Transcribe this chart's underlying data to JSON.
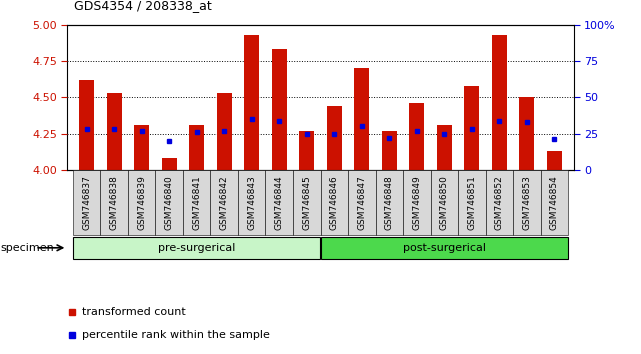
{
  "title": "GDS4354 / 208338_at",
  "samples": [
    "GSM746837",
    "GSM746838",
    "GSM746839",
    "GSM746840",
    "GSM746841",
    "GSM746842",
    "GSM746843",
    "GSM746844",
    "GSM746845",
    "GSM746846",
    "GSM746847",
    "GSM746848",
    "GSM746849",
    "GSM746850",
    "GSM746851",
    "GSM746852",
    "GSM746853",
    "GSM746854"
  ],
  "bar_heights": [
    4.62,
    4.53,
    4.31,
    4.08,
    4.31,
    4.53,
    4.93,
    4.83,
    4.27,
    4.44,
    4.7,
    4.27,
    4.46,
    4.31,
    4.58,
    4.93,
    4.5,
    4.13
  ],
  "blue_dot_y": [
    4.28,
    4.28,
    4.27,
    4.2,
    4.26,
    4.27,
    4.35,
    4.34,
    4.25,
    4.25,
    4.3,
    4.22,
    4.27,
    4.25,
    4.28,
    4.34,
    4.33,
    4.21
  ],
  "pre_surgical_count": 9,
  "post_surgical_count": 9,
  "group_light_color": "#c8f5c8",
  "group_dark_color": "#4cd94c",
  "ylim_left": [
    4.0,
    5.0
  ],
  "ylim_right": [
    0,
    100
  ],
  "yticks_left": [
    4.0,
    4.25,
    4.5,
    4.75,
    5.0
  ],
  "yticks_right": [
    0,
    25,
    50,
    75,
    100
  ],
  "bar_color": "#cc1100",
  "dot_color": "#0000dd",
  "bar_width": 0.55,
  "bg_color": "#ffffff",
  "axis_color_left": "#cc1100",
  "axis_color_right": "#0000dd",
  "specimen_label": "specimen",
  "pre_label": "pre-surgerical",
  "post_label": "post-surgerical",
  "legend_red_label": "transformed count",
  "legend_blue_label": "percentile rank within the sample"
}
